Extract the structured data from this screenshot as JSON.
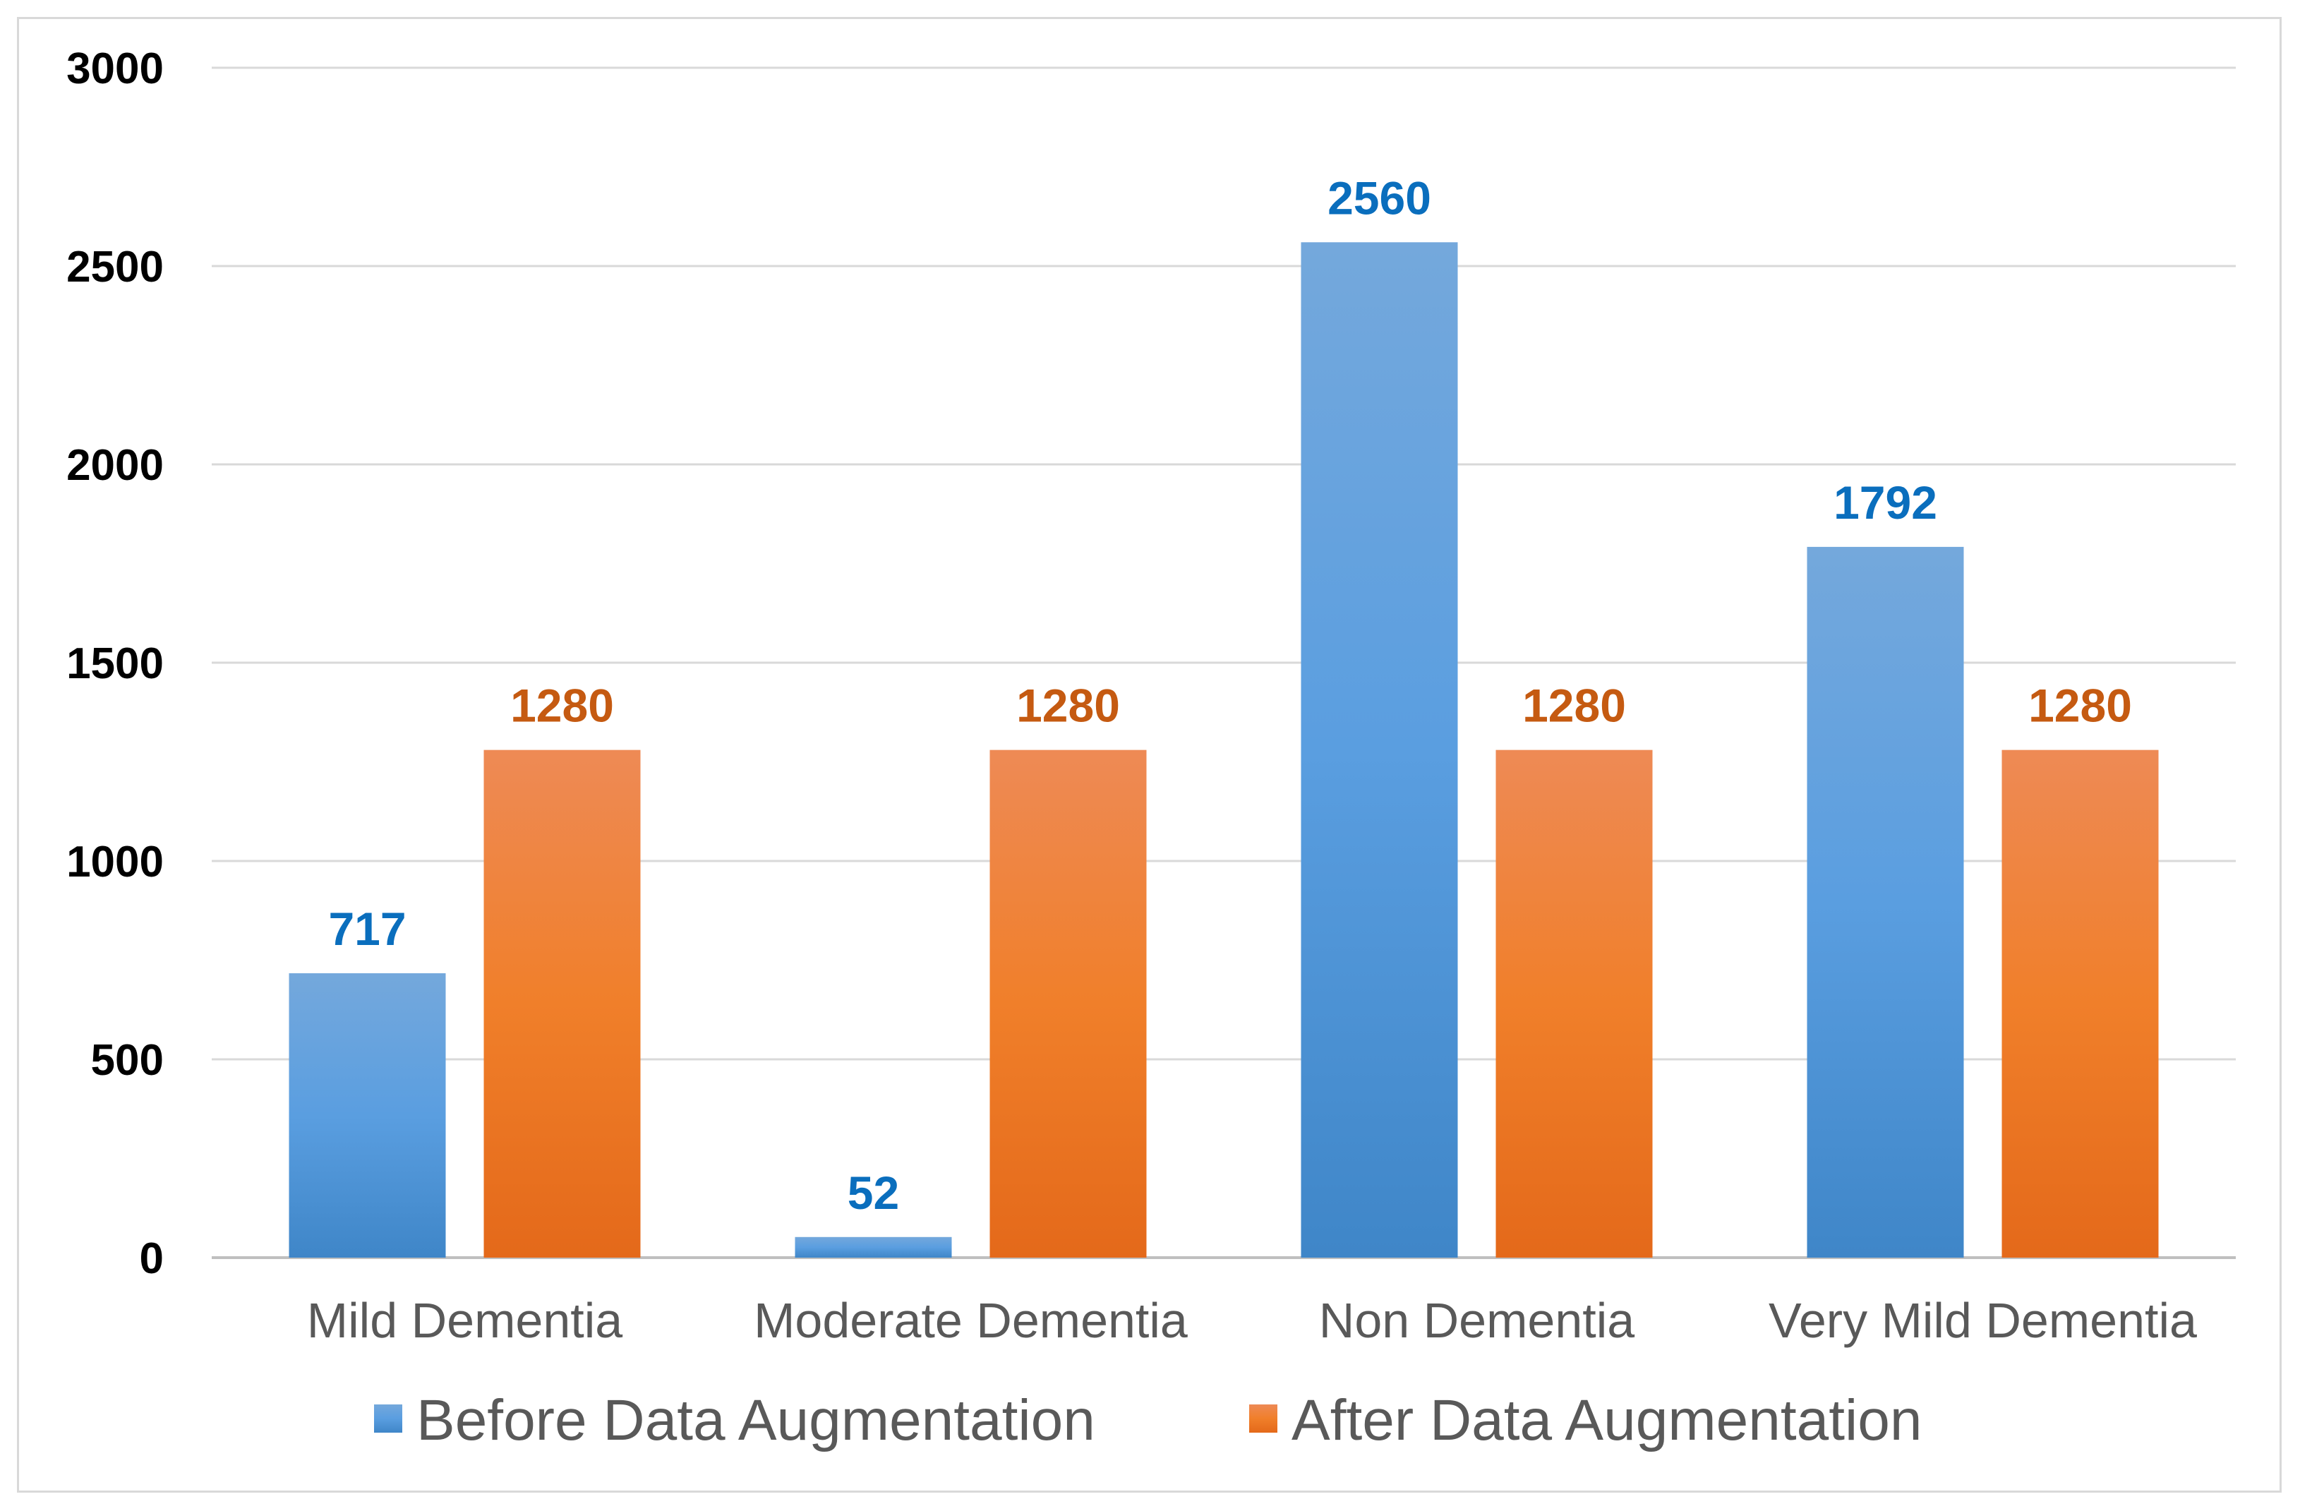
{
  "chart_data": {
    "type": "bar",
    "categories": [
      "Mild Dementia",
      "Moderate Dementia",
      "Non Dementia",
      "Very Mild Dementia"
    ],
    "series": [
      {
        "name": "Before Data Augmentation",
        "values": [
          717,
          52,
          2560,
          1792
        ],
        "color": "#4a90d9",
        "label_color": "#0a6ebd"
      },
      {
        "name": "After Data Augmentation",
        "values": [
          1280,
          1280,
          1280,
          1280
        ],
        "color": "#ef7d2c",
        "label_color": "#c55a11"
      }
    ],
    "yticks": [
      0,
      500,
      1000,
      1500,
      2000,
      2500,
      3000
    ],
    "ylim": [
      0,
      3000
    ],
    "grid": true,
    "legend_position": "bottom",
    "title": "",
    "xlabel": "",
    "ylabel": ""
  }
}
